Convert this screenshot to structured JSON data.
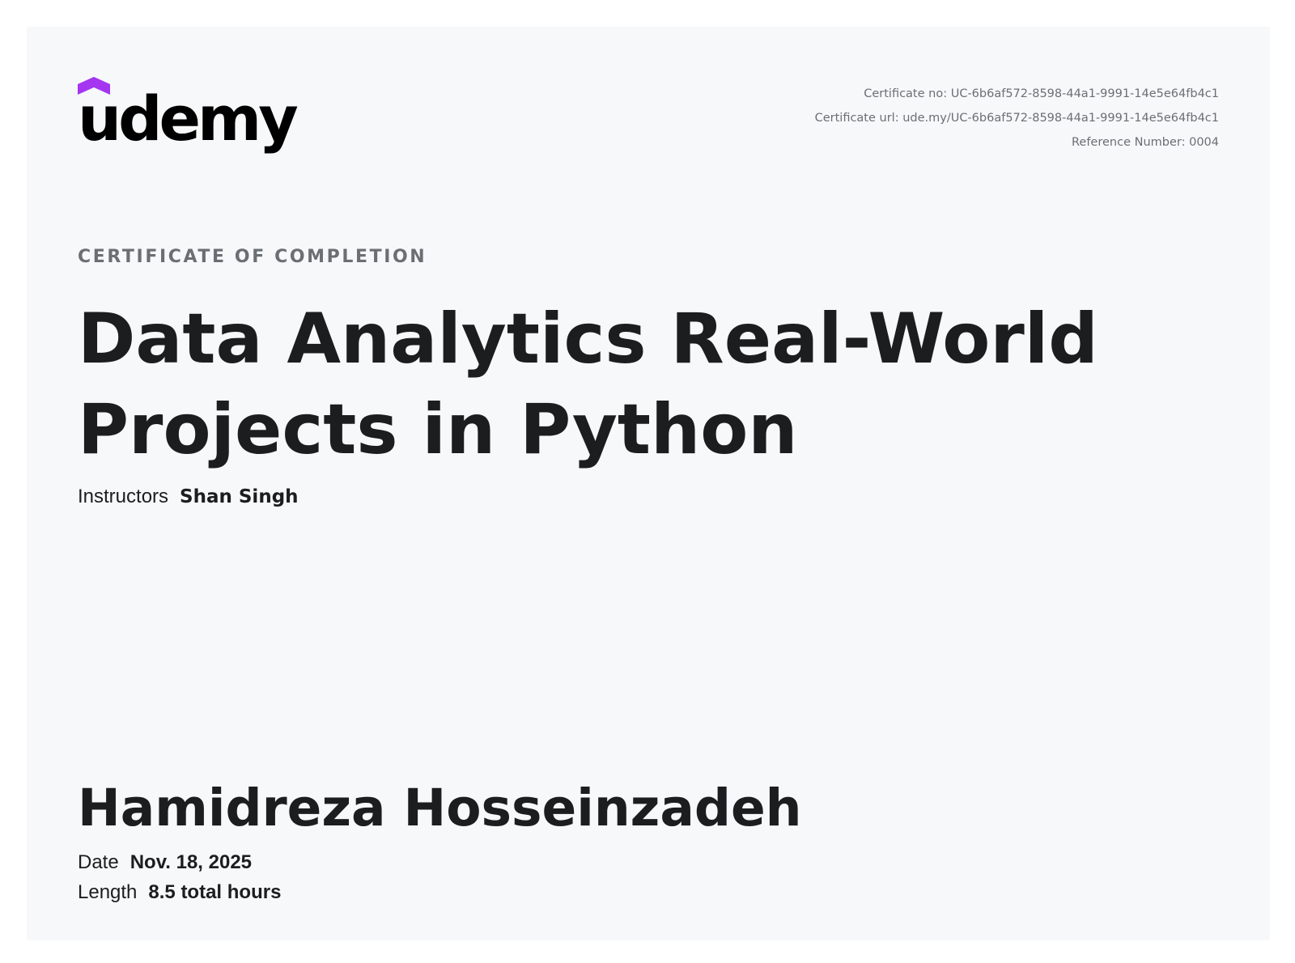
{
  "brand": {
    "logo_text": "udemy",
    "accent_color": "#a435f0"
  },
  "meta": {
    "certificate_no": "Certificate no: UC-6b6af572-8598-44a1-9991-14e5e64fb4c1",
    "certificate_url": "Certificate url: ude.my/UC-6b6af572-8598-44a1-9991-14e5e64fb4c1",
    "reference_number": "Reference Number: 0004"
  },
  "kicker": "CERTIFICATE OF COMPLETION",
  "course_title": "Data Analytics Real-World Projects in Python",
  "instructors": {
    "label": "Instructors",
    "value": "Shan Singh"
  },
  "recipient": "Hamidreza Hosseinzadeh",
  "date": {
    "label": "Date",
    "value": "Nov. 18, 2025"
  },
  "length": {
    "label": "Length",
    "value": "8.5 total hours"
  }
}
